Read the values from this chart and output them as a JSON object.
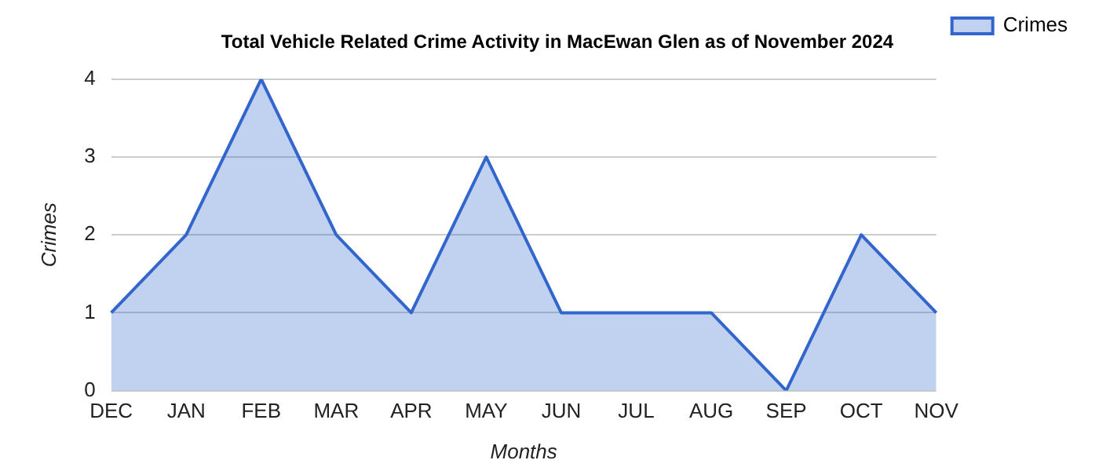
{
  "chart_data": {
    "type": "area",
    "title": "Total Vehicle Related Crime Activity in MacEwan Glen as of November 2024",
    "xlabel": "Months",
    "ylabel": "Crimes",
    "categories": [
      "DEC",
      "JAN",
      "FEB",
      "MAR",
      "APR",
      "MAY",
      "JUN",
      "JUL",
      "AUG",
      "SEP",
      "OCT",
      "NOV"
    ],
    "series": [
      {
        "name": "Crimes",
        "color": "#3366cc",
        "values": [
          1,
          2,
          4,
          2,
          1,
          3,
          1,
          1,
          1,
          0,
          2,
          1
        ]
      }
    ],
    "ylim": [
      0,
      4
    ],
    "yticks": [
      0,
      1,
      2,
      3,
      4
    ],
    "grid": "y",
    "legend": "top right",
    "marker": "none",
    "line_style": "solid"
  }
}
